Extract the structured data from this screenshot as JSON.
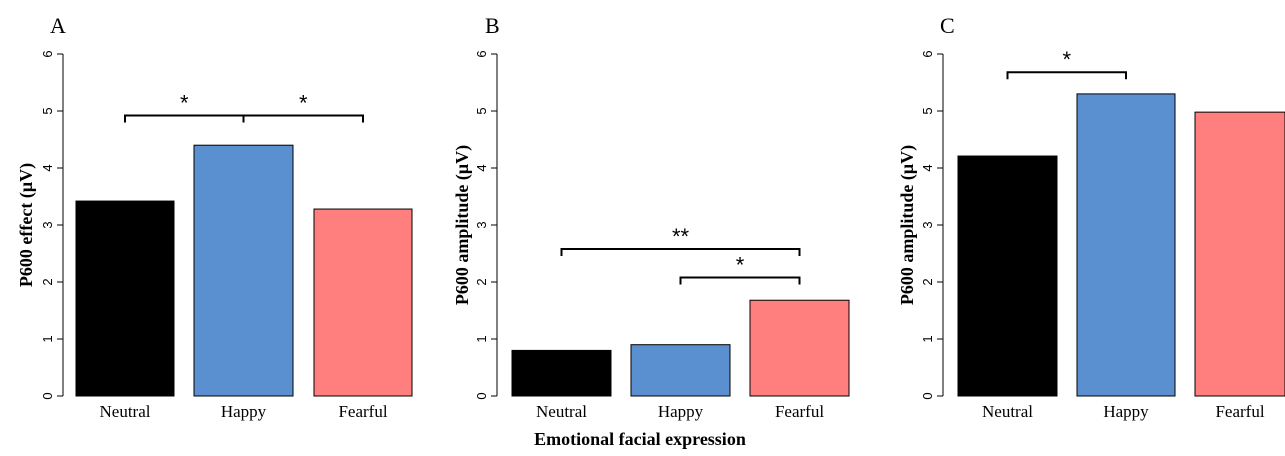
{
  "figure": {
    "x_axis_label": "Emotional facial expression"
  },
  "chart_data": [
    {
      "type": "bar",
      "panel": "A",
      "ylabel": "P600 effect (μV)",
      "categories": [
        "Neutral",
        "Happy",
        "Fearful"
      ],
      "values": [
        3.42,
        4.4,
        3.28
      ],
      "colors": [
        "#000000",
        "#5a8fd0",
        "#ff7f7f"
      ],
      "ylim": [
        0,
        6
      ],
      "yticks": [
        "0",
        "1",
        "2",
        "3",
        "4",
        "5",
        "6"
      ],
      "significance": [
        {
          "from": 0,
          "to": 1,
          "label": "*",
          "level": 4.92
        },
        {
          "from": 1,
          "to": 2,
          "label": "*",
          "level": 4.92
        }
      ]
    },
    {
      "type": "bar",
      "panel": "B",
      "ylabel": "P600 amplitude (μV)",
      "categories": [
        "Neutral",
        "Happy",
        "Fearful"
      ],
      "values": [
        0.8,
        0.9,
        1.68
      ],
      "colors": [
        "#000000",
        "#5a8fd0",
        "#ff7f7f"
      ],
      "ylim": [
        0,
        6
      ],
      "yticks": [
        "0",
        "1",
        "2",
        "3",
        "4",
        "5",
        "6"
      ],
      "significance": [
        {
          "from": 0,
          "to": 2,
          "label": "**",
          "level": 2.58
        },
        {
          "from": 1,
          "to": 2,
          "label": "*",
          "level": 2.08
        }
      ]
    },
    {
      "type": "bar",
      "panel": "C",
      "ylabel": "P600 amplitude (μV)",
      "categories": [
        "Neutral",
        "Happy",
        "Fearful"
      ],
      "values": [
        4.21,
        5.3,
        4.98
      ],
      "colors": [
        "#000000",
        "#5a8fd0",
        "#ff7f7f"
      ],
      "ylim": [
        0,
        6
      ],
      "yticks": [
        "0",
        "1",
        "2",
        "3",
        "4",
        "5",
        "6"
      ],
      "significance": [
        {
          "from": 0,
          "to": 1,
          "label": "*",
          "level": 5.68
        }
      ]
    }
  ]
}
